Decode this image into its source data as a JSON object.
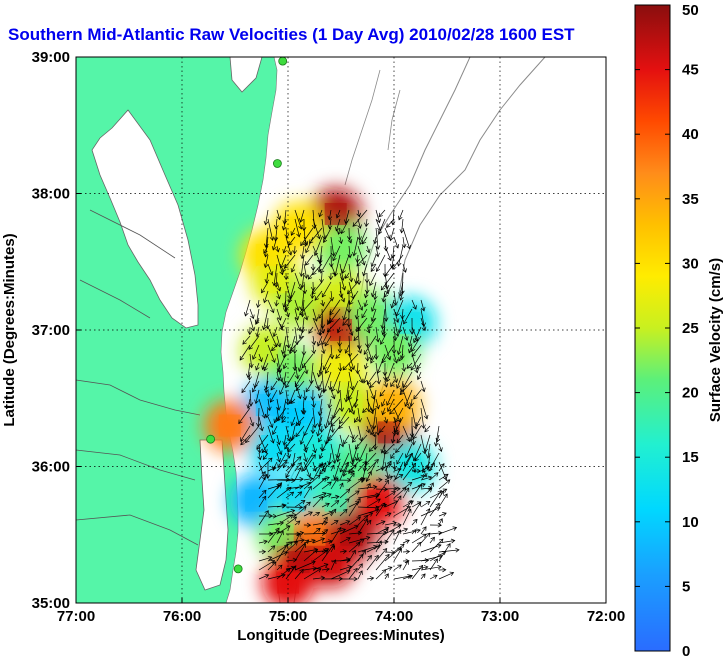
{
  "chart_data": {
    "type": "heatmap",
    "title": "Southern Mid-Atlantic Raw Velocities (1 Day Avg) 2010/02/28 1600 EST",
    "xlabel": "Longitude (Degrees:Minutes)",
    "ylabel": "Latitude (Degrees:Minutes)",
    "colorbar_label": "Surface Velocity (cm/s)",
    "x_ticks": [
      {
        "value": -77,
        "label": "77:00"
      },
      {
        "value": -76,
        "label": "76:00"
      },
      {
        "value": -75,
        "label": "75:00"
      },
      {
        "value": -74,
        "label": "74:00"
      },
      {
        "value": -73,
        "label": "73:00"
      },
      {
        "value": -72,
        "label": "72:00"
      }
    ],
    "y_ticks": [
      {
        "value": 35,
        "label": "35:00"
      },
      {
        "value": 36,
        "label": "36:00"
      },
      {
        "value": 37,
        "label": "37:00"
      },
      {
        "value": 38,
        "label": "38:00"
      },
      {
        "value": 39,
        "label": "39:00"
      }
    ],
    "xlim": [
      -77,
      -72
    ],
    "ylim": [
      35,
      39
    ],
    "grid": true,
    "colorbar": {
      "range": [
        0,
        50
      ],
      "ticks": [
        {
          "value": 0,
          "label": "0"
        },
        {
          "value": 5,
          "label": "5"
        },
        {
          "value": 10,
          "label": "10"
        },
        {
          "value": 15,
          "label": "15"
        },
        {
          "value": 20,
          "label": "20"
        },
        {
          "value": 25,
          "label": "25"
        },
        {
          "value": 30,
          "label": "30"
        },
        {
          "value": 35,
          "label": "35"
        },
        {
          "value": 40,
          "label": "40"
        },
        {
          "value": 45,
          "label": "45"
        },
        {
          "value": 50,
          "label": "50"
        }
      ]
    },
    "regions": [
      {
        "lon": -74.55,
        "lat": 37.85,
        "speed": 48
      },
      {
        "lon": -74.5,
        "lat": 37.6,
        "speed": 22
      },
      {
        "lon": -74.9,
        "lat": 37.75,
        "speed": 30
      },
      {
        "lon": -75.2,
        "lat": 37.55,
        "speed": 30
      },
      {
        "lon": -75.1,
        "lat": 37.35,
        "speed": 27
      },
      {
        "lon": -74.9,
        "lat": 37.2,
        "speed": 24
      },
      {
        "lon": -74.5,
        "lat": 37.25,
        "speed": 26
      },
      {
        "lon": -74.5,
        "lat": 37.0,
        "speed": 47
      },
      {
        "lon": -74.2,
        "lat": 37.1,
        "speed": 22
      },
      {
        "lon": -73.85,
        "lat": 37.05,
        "speed": 13
      },
      {
        "lon": -74.0,
        "lat": 36.85,
        "speed": 22
      },
      {
        "lon": -75.2,
        "lat": 36.85,
        "speed": 25
      },
      {
        "lon": -74.95,
        "lat": 36.7,
        "speed": 22
      },
      {
        "lon": -74.5,
        "lat": 36.7,
        "speed": 28
      },
      {
        "lon": -75.2,
        "lat": 36.45,
        "speed": 9
      },
      {
        "lon": -74.8,
        "lat": 36.4,
        "speed": 10
      },
      {
        "lon": -74.4,
        "lat": 36.45,
        "speed": 25
      },
      {
        "lon": -74.05,
        "lat": 36.25,
        "speed": 48
      },
      {
        "lon": -74.0,
        "lat": 36.45,
        "speed": 34
      },
      {
        "lon": -73.85,
        "lat": 36.0,
        "speed": 14
      },
      {
        "lon": -75.15,
        "lat": 36.15,
        "speed": 12
      },
      {
        "lon": -74.7,
        "lat": 36.1,
        "speed": 15
      },
      {
        "lon": -74.35,
        "lat": 36.0,
        "speed": 20
      },
      {
        "lon": -75.3,
        "lat": 35.75,
        "speed": 8
      },
      {
        "lon": -74.95,
        "lat": 35.75,
        "speed": 12
      },
      {
        "lon": -74.55,
        "lat": 35.75,
        "speed": 18
      },
      {
        "lon": -74.15,
        "lat": 35.75,
        "speed": 45
      },
      {
        "lon": -75.05,
        "lat": 35.5,
        "speed": 22
      },
      {
        "lon": -74.75,
        "lat": 35.5,
        "speed": 38
      },
      {
        "lon": -74.4,
        "lat": 35.5,
        "speed": 48
      },
      {
        "lon": -74.9,
        "lat": 35.3,
        "speed": 48
      },
      {
        "lon": -74.6,
        "lat": 35.3,
        "speed": 46
      },
      {
        "lon": -75.0,
        "lat": 35.15,
        "speed": 45
      },
      {
        "lon": -75.55,
        "lat": 36.3,
        "speed": 38
      }
    ],
    "stations": [
      {
        "lon": -75.05,
        "lat": 38.97
      },
      {
        "lon": -75.1,
        "lat": 38.22
      },
      {
        "lon": -75.73,
        "lat": 36.2
      },
      {
        "lon": -75.47,
        "lat": 35.25
      }
    ]
  }
}
